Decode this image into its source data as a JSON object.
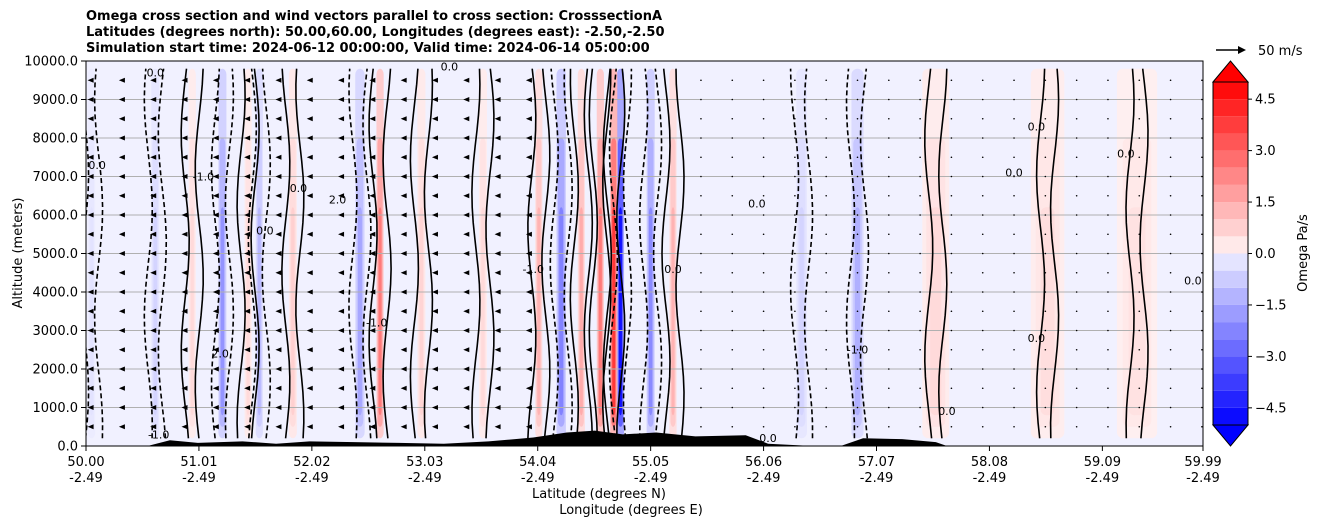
{
  "chart_data": {
    "type": "heatmap",
    "title_lines": [
      "Omega cross section and wind vectors parallel to cross section: CrosssectionA",
      "Latitudes (degrees north): 50.00,60.00, Longitudes (degrees east): -2.50,-2.50",
      "Simulation start time: 2024-06-12 00:00:00, Valid time: 2024-06-14 05:00:00"
    ],
    "xlabel_lines": [
      "Latitude (degrees N)",
      "Longitude (degrees E)"
    ],
    "ylabel": "Altitude (meters)",
    "x_range": [
      50.0,
      59.99
    ],
    "ylim": [
      0,
      10000
    ],
    "grid": true,
    "x_ticks": [
      {
        "lat": 50.0,
        "lat_label": "50.00",
        "lon_label": "-2.49"
      },
      {
        "lat": 51.01,
        "lat_label": "51.01",
        "lon_label": "-2.49"
      },
      {
        "lat": 52.02,
        "lat_label": "52.02",
        "lon_label": "-2.49"
      },
      {
        "lat": 53.03,
        "lat_label": "53.03",
        "lon_label": "-2.49"
      },
      {
        "lat": 54.04,
        "lat_label": "54.04",
        "lon_label": "-2.49"
      },
      {
        "lat": 55.05,
        "lat_label": "55.05",
        "lon_label": "-2.49"
      },
      {
        "lat": 56.06,
        "lat_label": "56.06",
        "lon_label": "-2.49"
      },
      {
        "lat": 57.07,
        "lat_label": "57.07",
        "lon_label": "-2.49"
      },
      {
        "lat": 58.08,
        "lat_label": "58.08",
        "lon_label": "-2.49"
      },
      {
        "lat": 59.09,
        "lat_label": "59.09",
        "lon_label": "-2.49"
      },
      {
        "lat": 59.99,
        "lat_label": "59.99",
        "lon_label": "-2.49"
      }
    ],
    "y_ticks": [
      {
        "value": 0,
        "label": "0.0"
      },
      {
        "value": 1000,
        "label": "1000.0"
      },
      {
        "value": 2000,
        "label": "2000.0"
      },
      {
        "value": 3000,
        "label": "3000.0"
      },
      {
        "value": 4000,
        "label": "4000.0"
      },
      {
        "value": 5000,
        "label": "5000.0"
      },
      {
        "value": 6000,
        "label": "6000.0"
      },
      {
        "value": 7000,
        "label": "7000.0"
      },
      {
        "value": 8000,
        "label": "8000.0"
      },
      {
        "value": 9000,
        "label": "9000.0"
      },
      {
        "value": 10000,
        "label": "10000.0"
      }
    ],
    "colorbar": {
      "label": "Omega Pa/s",
      "vmin": -5.0,
      "vmax": 5.0,
      "levels": 20,
      "extend": "both",
      "ticks": [
        {
          "value": 4.5,
          "label": "4.5"
        },
        {
          "value": 3.0,
          "label": "3.0"
        },
        {
          "value": 1.5,
          "label": "1.5"
        },
        {
          "value": 0.0,
          "label": "0.0"
        },
        {
          "value": -1.5,
          "label": "−1.5"
        },
        {
          "value": -3.0,
          "label": "−3.0"
        },
        {
          "value": -4.5,
          "label": "−4.5"
        }
      ],
      "color_min": "#0000ff",
      "color_max": "#ff0000"
    },
    "quiver_key": {
      "label": "50 m/s",
      "speed": 50
    },
    "omega_bands": [
      {
        "lat": 50.05,
        "value": -0.3,
        "width": 0.05
      },
      {
        "lat": 50.62,
        "value": -0.6,
        "width": 0.06
      },
      {
        "lat": 50.95,
        "value": 0.6,
        "width": 0.05
      },
      {
        "lat": 51.22,
        "value": -2.0,
        "width": 0.06
      },
      {
        "lat": 51.45,
        "value": 0.6,
        "width": 0.05
      },
      {
        "lat": 51.55,
        "value": -1.2,
        "width": 0.05
      },
      {
        "lat": 51.85,
        "value": 0.8,
        "width": 0.06
      },
      {
        "lat": 52.45,
        "value": -1.6,
        "width": 0.07
      },
      {
        "lat": 52.63,
        "value": 2.6,
        "width": 0.05
      },
      {
        "lat": 53.0,
        "value": 0.7,
        "width": 0.06
      },
      {
        "lat": 53.55,
        "value": 0.6,
        "width": 0.06
      },
      {
        "lat": 54.05,
        "value": 1.4,
        "width": 0.05
      },
      {
        "lat": 54.25,
        "value": -2.4,
        "width": 0.07
      },
      {
        "lat": 54.43,
        "value": 1.6,
        "width": 0.04
      },
      {
        "lat": 54.6,
        "value": 2.6,
        "width": 0.04
      },
      {
        "lat": 54.78,
        "value": -4.8,
        "width": 0.04
      },
      {
        "lat": 54.72,
        "value": 4.0,
        "width": 0.03
      },
      {
        "lat": 55.05,
        "value": -2.2,
        "width": 0.06
      },
      {
        "lat": 55.25,
        "value": 1.4,
        "width": 0.05
      },
      {
        "lat": 56.4,
        "value": -0.6,
        "width": 0.08
      },
      {
        "lat": 56.9,
        "value": -1.4,
        "width": 0.09
      },
      {
        "lat": 57.6,
        "value": 0.6,
        "width": 0.2
      },
      {
        "lat": 58.6,
        "value": 0.5,
        "width": 0.25
      },
      {
        "lat": 59.4,
        "value": 0.4,
        "width": 0.3
      }
    ],
    "terrain": [
      {
        "lat": 50.0,
        "alt": 0
      },
      {
        "lat": 50.55,
        "alt": 0
      },
      {
        "lat": 50.75,
        "alt": 150
      },
      {
        "lat": 51.0,
        "alt": 80
      },
      {
        "lat": 51.4,
        "alt": 120
      },
      {
        "lat": 51.7,
        "alt": 60
      },
      {
        "lat": 52.0,
        "alt": 120
      },
      {
        "lat": 52.4,
        "alt": 100
      },
      {
        "lat": 52.8,
        "alt": 80
      },
      {
        "lat": 53.2,
        "alt": 60
      },
      {
        "lat": 53.6,
        "alt": 120
      },
      {
        "lat": 54.0,
        "alt": 220
      },
      {
        "lat": 54.3,
        "alt": 350
      },
      {
        "lat": 54.55,
        "alt": 400
      },
      {
        "lat": 54.8,
        "alt": 300
      },
      {
        "lat": 55.1,
        "alt": 350
      },
      {
        "lat": 55.45,
        "alt": 250
      },
      {
        "lat": 55.9,
        "alt": 280
      },
      {
        "lat": 56.1,
        "alt": 60
      },
      {
        "lat": 56.5,
        "alt": 0
      },
      {
        "lat": 56.75,
        "alt": 0
      },
      {
        "lat": 56.95,
        "alt": 200
      },
      {
        "lat": 57.3,
        "alt": 180
      },
      {
        "lat": 57.6,
        "alt": 100
      },
      {
        "lat": 57.7,
        "alt": 0
      },
      {
        "lat": 59.99,
        "alt": 0
      }
    ],
    "contour_labels": [
      {
        "text": "0.0",
        "lat": 50.62,
        "alt": 9600
      },
      {
        "text": "0.0",
        "lat": 50.1,
        "alt": 7200
      },
      {
        "text": "-1.0",
        "lat": 51.05,
        "alt": 6900
      },
      {
        "text": "0.0",
        "lat": 51.6,
        "alt": 5500
      },
      {
        "text": "0.0",
        "lat": 51.9,
        "alt": 6600
      },
      {
        "text": "2.0",
        "lat": 52.25,
        "alt": 6300
      },
      {
        "text": "0.0",
        "lat": 53.25,
        "alt": 9750
      },
      {
        "text": "-1.0",
        "lat": 52.6,
        "alt": 3100
      },
      {
        "text": "-1.0",
        "lat": 54.0,
        "alt": 4500
      },
      {
        "text": "2.0",
        "lat": 51.2,
        "alt": 2300
      },
      {
        "text": "-1.0",
        "lat": 50.65,
        "alt": 200
      },
      {
        "text": "0.0",
        "lat": 55.25,
        "alt": 4500
      },
      {
        "text": "0.0",
        "lat": 56.0,
        "alt": 6200
      },
      {
        "text": "0.0",
        "lat": 56.1,
        "alt": 100
      },
      {
        "text": "-1.0",
        "lat": 56.9,
        "alt": 2400
      },
      {
        "text": "0.0",
        "lat": 57.7,
        "alt": 800
      },
      {
        "text": "0.0",
        "lat": 58.5,
        "alt": 2700
      },
      {
        "text": "0.0",
        "lat": 58.3,
        "alt": 7000
      },
      {
        "text": "0.0",
        "lat": 58.5,
        "alt": 8200
      },
      {
        "text": "0.0",
        "lat": 59.3,
        "alt": 7500
      },
      {
        "text": "0.0",
        "lat": 59.9,
        "alt": 4200
      }
    ]
  },
  "colors": {
    "positive": "#ff0000",
    "negative": "#0000ff",
    "contour": "#000000",
    "grid": "#b0b0b0",
    "terrain": "#000000"
  }
}
